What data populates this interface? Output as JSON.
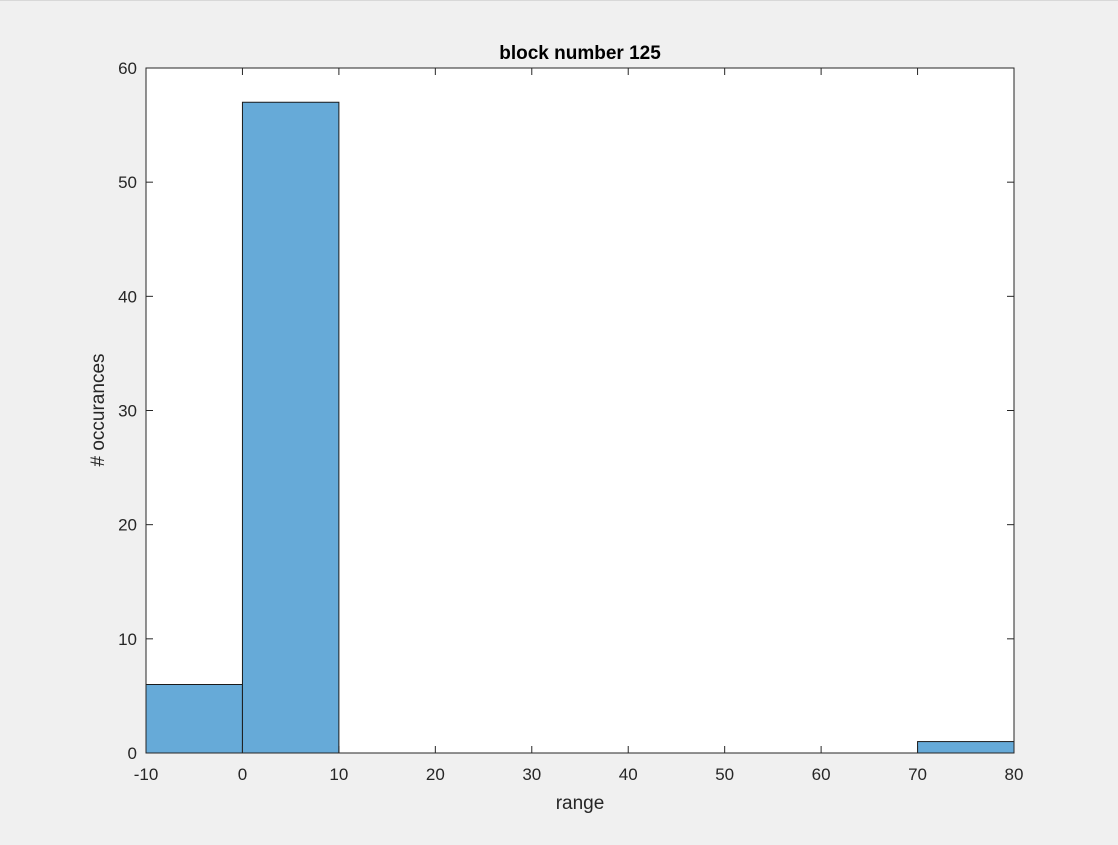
{
  "chart_data": {
    "type": "bar",
    "title": "block number 125",
    "xlabel": "range",
    "ylabel": "# occurances",
    "bin_edges": [
      -10,
      0,
      10,
      20,
      30,
      40,
      50,
      60,
      70,
      80
    ],
    "values": [
      6,
      57,
      0,
      0,
      0,
      0,
      0,
      0,
      1
    ],
    "xlim": [
      -10,
      80
    ],
    "ylim": [
      0,
      60
    ],
    "xticks": [
      "-10",
      "0",
      "10",
      "20",
      "30",
      "40",
      "50",
      "60",
      "70",
      "80"
    ],
    "yticks": [
      "0",
      "10",
      "20",
      "30",
      "40",
      "50",
      "60"
    ],
    "grid": false,
    "bar_color": "#66aad8",
    "edge_color": "#1a1a1a"
  }
}
